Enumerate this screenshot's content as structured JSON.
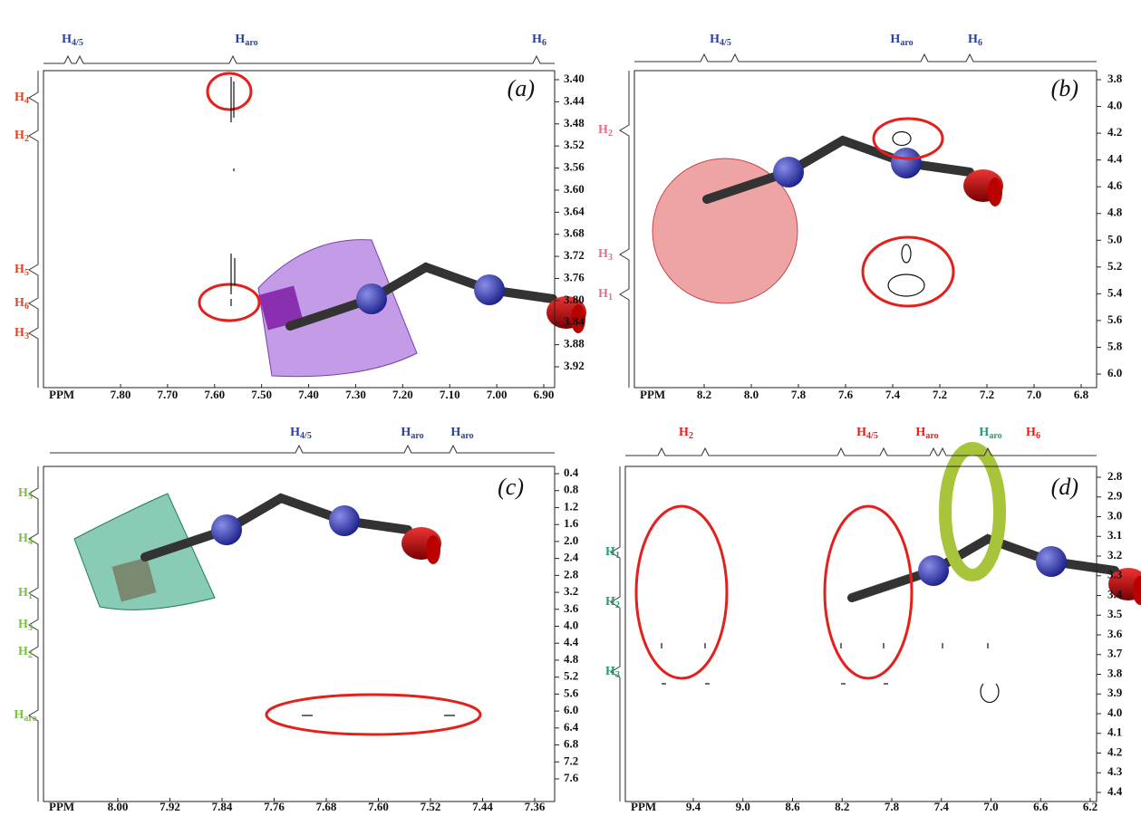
{
  "panels": [
    {
      "label": "(a)",
      "x_axis_title": "PPM",
      "x_ticks": [
        "7.80",
        "7.70",
        "7.60",
        "7.50",
        "7.40",
        "7.30",
        "7.20",
        "7.10",
        "7.00",
        "6.90"
      ],
      "y_ticks": [
        "3.40",
        "3.44",
        "3.48",
        "3.52",
        "3.56",
        "3.60",
        "3.64",
        "3.68",
        "3.72",
        "3.76",
        "3.80",
        "3.84",
        "3.88",
        "3.92"
      ],
      "top_labels": [
        {
          "main": "H",
          "sub": "4/5"
        },
        {
          "main": "H",
          "sub": "aro"
        },
        {
          "main": "H",
          "sub": "6"
        }
      ],
      "left_labels": [
        {
          "main": "H",
          "sub": "4"
        },
        {
          "main": "H",
          "sub": "2"
        },
        {
          "main": "H",
          "sub": "5"
        },
        {
          "main": "H",
          "sub": "6"
        },
        {
          "main": "H",
          "sub": "3"
        }
      ]
    },
    {
      "label": "(b)",
      "x_axis_title": "PPM",
      "x_ticks": [
        "8.2",
        "8.0",
        "7.8",
        "7.6",
        "7.4",
        "7.2",
        "7.2",
        "7.0",
        "6.8"
      ],
      "y_ticks": [
        "3.8",
        "4.0",
        "4.2",
        "4.4",
        "4.6",
        "4.8",
        "5.0",
        "5.2",
        "5.4",
        "5.6",
        "5.8",
        "6.0"
      ],
      "top_labels": [
        {
          "main": "H",
          "sub": "4/5"
        },
        {
          "main": "H",
          "sub": "aro"
        },
        {
          "main": "H",
          "sub": "6"
        }
      ],
      "left_labels": [
        {
          "main": "H",
          "sub": "2"
        },
        {
          "main": "H",
          "sub": "3"
        },
        {
          "main": "H",
          "sub": "1"
        }
      ]
    },
    {
      "label": "(c)",
      "x_axis_title": "PPM",
      "x_ticks": [
        "8.00",
        "7.92",
        "7.84",
        "7.76",
        "7.68",
        "7.60",
        "7.52",
        "7.44",
        "7.36"
      ],
      "y_ticks": [
        "0.4",
        "0.8",
        "1.2",
        "1.6",
        "2.0",
        "2.4",
        "2.8",
        "3.2",
        "3.6",
        "4.0",
        "4.4",
        "4.8",
        "5.2",
        "5.6",
        "6.0",
        "6.4",
        "6.8",
        "7.2",
        "7.6"
      ],
      "top_labels": [
        {
          "main": "H",
          "sub": "4/5"
        },
        {
          "main": "H",
          "sub": "aro"
        },
        {
          "main": "H",
          "sub": "aro"
        }
      ],
      "left_labels": [
        {
          "main": "H",
          "sub": "5"
        },
        {
          "main": "H",
          "sub": "4"
        },
        {
          "main": "H",
          "sub": "1"
        },
        {
          "main": "H",
          "sub": "3"
        },
        {
          "main": "H",
          "sub": "2"
        },
        {
          "main": "H",
          "sub": "aro"
        }
      ]
    },
    {
      "label": "(d)",
      "x_axis_title": "PPM",
      "x_ticks": [
        "9.4",
        "9.0",
        "8.6",
        "8.2",
        "7.8",
        "7.4",
        "7.0",
        "6.6",
        "6.2"
      ],
      "y_ticks": [
        "2.8",
        "2.9",
        "3.0",
        "3.1",
        "3.2",
        "3.3",
        "3.4",
        "3.5",
        "3.6",
        "3.7",
        "3.8",
        "3.9",
        "4.0",
        "4.1",
        "4.2",
        "4.3",
        "4.4"
      ],
      "top_labels": [
        {
          "main": "H",
          "sub": "2"
        },
        {
          "main": "H",
          "sub": "4/5"
        },
        {
          "main": "H",
          "sub": "aro"
        },
        {
          "main": "H",
          "sub": "aro"
        },
        {
          "main": "H",
          "sub": "6"
        }
      ],
      "left_labels": [
        {
          "main": "H",
          "sub": "1"
        },
        {
          "main": "H",
          "sub": "2"
        },
        {
          "main": "H",
          "sub": "3"
        }
      ]
    }
  ]
}
